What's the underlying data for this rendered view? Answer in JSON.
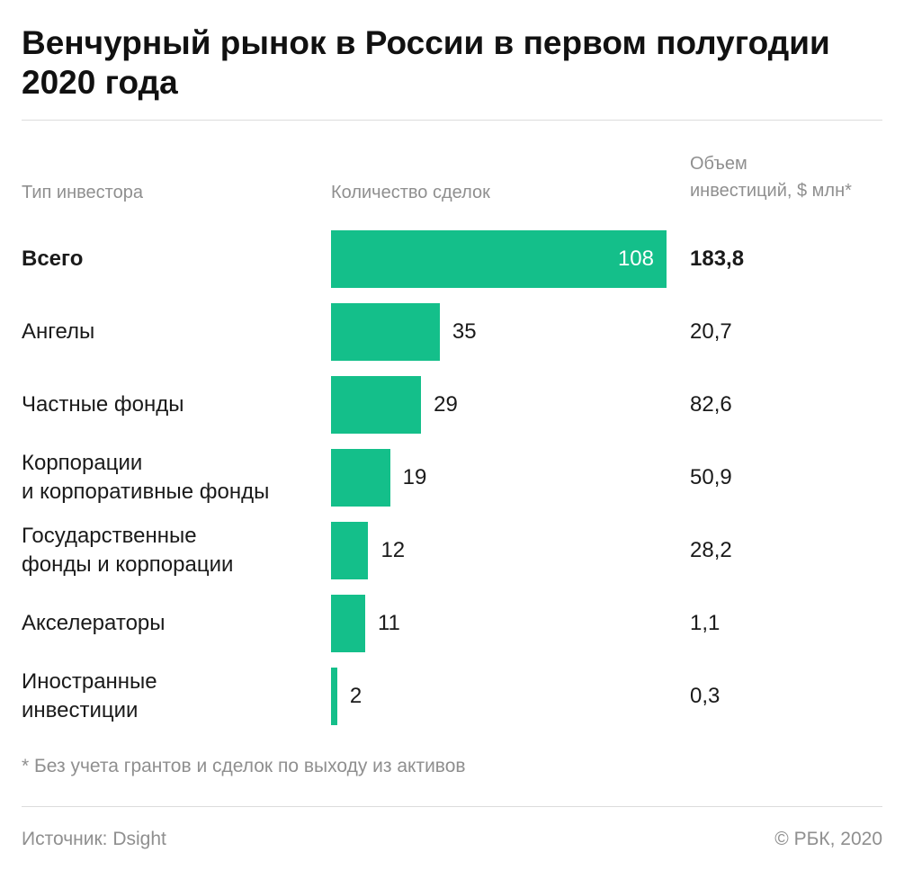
{
  "title": "Венчурный рынок в России в первом полугодии 2020 года",
  "headers": {
    "investor_type": "Тип инвестора",
    "deals": "Количество сделок",
    "volume": "Объем\nинвестиций, $ млн*"
  },
  "footnote": "* Без учета грантов и сделок по выходу из активов",
  "source": "Источник: Dsight",
  "copyright": "© РБК, 2020",
  "colors": {
    "bar": "#14bf8a",
    "text": "#1a1a1a",
    "muted": "#8f8f8f"
  },
  "chart_data": {
    "type": "bar",
    "orientation": "horizontal",
    "categories": [
      "Всего",
      "Ангелы",
      "Частные фонды",
      "Корпорации\nи корпоративные фонды",
      "Государственные\nфонды и корпорации",
      "Акселераторы",
      "Иностранные\nинвестиции"
    ],
    "series": [
      {
        "name": "Количество сделок",
        "values": [
          108,
          35,
          29,
          19,
          12,
          11,
          2
        ]
      }
    ],
    "investment_volume": [
      "183,8",
      "20,7",
      "82,6",
      "50,9",
      "28,2",
      "1,1",
      "0,3"
    ],
    "xlim": [
      0,
      108
    ]
  }
}
